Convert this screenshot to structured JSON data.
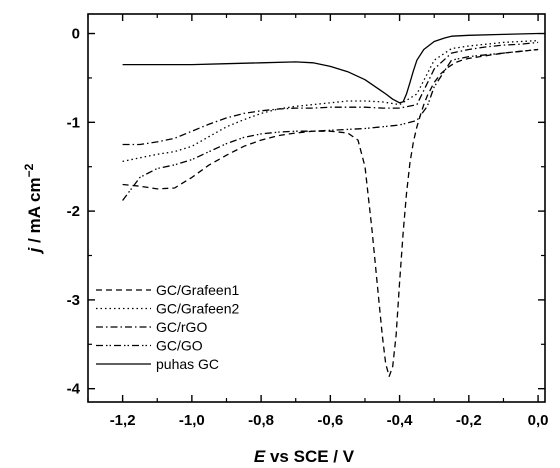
{
  "chart_data": {
    "type": "line",
    "xlabel": {
      "var": "E",
      "rest": " vs SCE / V"
    },
    "ylabel": {
      "var": "j",
      "rest": " / mA cm",
      "sup": "−2"
    },
    "xlim": [
      -1.3,
      0.02
    ],
    "ylim": [
      -4.15,
      0.22
    ],
    "xticks": [
      -1.2,
      -1.0,
      -0.8,
      -0.6,
      -0.4,
      -0.2,
      0.0
    ],
    "xtick_labels": [
      "-1,2",
      "-1,0",
      "-0,8",
      "-0,6",
      "-0,4",
      "-0,2",
      "0,0"
    ],
    "yticks": [
      0,
      -1,
      -2,
      -3,
      -4
    ],
    "ytick_labels": [
      "0",
      "-1",
      "-2",
      "-3",
      "-4"
    ],
    "grid": false,
    "legend_position": "bottom-left",
    "series": [
      {
        "name": "GC/Grafeen1",
        "dash": "6,4",
        "x": [
          -1.2,
          -1.15,
          -1.1,
          -1.05,
          -1.0,
          -0.95,
          -0.9,
          -0.85,
          -0.8,
          -0.75,
          -0.7,
          -0.65,
          -0.6,
          -0.55,
          -0.52,
          -0.5,
          -0.48,
          -0.46,
          -0.45,
          -0.44,
          -0.43,
          -0.42,
          -0.41,
          -0.4,
          -0.39,
          -0.38,
          -0.37,
          -0.36,
          -0.35,
          -0.34,
          -0.33,
          -0.32,
          -0.3,
          -0.28,
          -0.26,
          -0.24,
          -0.22,
          -0.2,
          -0.15,
          -0.1,
          -0.05,
          0.0
        ],
        "y": [
          -1.7,
          -1.72,
          -1.75,
          -1.74,
          -1.62,
          -1.48,
          -1.37,
          -1.27,
          -1.2,
          -1.15,
          -1.12,
          -1.1,
          -1.1,
          -1.12,
          -1.2,
          -1.5,
          -2.2,
          -3.0,
          -3.4,
          -3.72,
          -3.86,
          -3.75,
          -3.4,
          -2.8,
          -2.25,
          -1.8,
          -1.45,
          -1.22,
          -1.05,
          -0.92,
          -0.8,
          -0.7,
          -0.55,
          -0.45,
          -0.38,
          -0.33,
          -0.3,
          -0.28,
          -0.25,
          -0.22,
          -0.2,
          -0.18
        ]
      },
      {
        "name": "GC/Grafeen2",
        "dash": "1.5,3",
        "x": [
          -1.2,
          -1.15,
          -1.1,
          -1.05,
          -1.0,
          -0.95,
          -0.9,
          -0.85,
          -0.8,
          -0.75,
          -0.7,
          -0.65,
          -0.6,
          -0.55,
          -0.5,
          -0.45,
          -0.4,
          -0.35,
          -0.3,
          -0.25,
          -0.2,
          -0.15,
          -0.1,
          -0.05,
          0.0
        ],
        "y": [
          -1.44,
          -1.4,
          -1.36,
          -1.33,
          -1.27,
          -1.16,
          -1.05,
          -0.97,
          -0.9,
          -0.85,
          -0.82,
          -0.8,
          -0.78,
          -0.76,
          -0.76,
          -0.77,
          -0.8,
          -0.68,
          -0.3,
          -0.17,
          -0.14,
          -0.12,
          -0.1,
          -0.09,
          -0.08
        ]
      },
      {
        "name": "GC/rGO",
        "dash": "7,3,1.5,3",
        "x": [
          -1.2,
          -1.15,
          -1.1,
          -1.05,
          -1.0,
          -0.95,
          -0.9,
          -0.85,
          -0.8,
          -0.75,
          -0.7,
          -0.65,
          -0.6,
          -0.55,
          -0.5,
          -0.45,
          -0.4,
          -0.35,
          -0.3,
          -0.25,
          -0.2,
          -0.15,
          -0.1,
          -0.05,
          0.0
        ],
        "y": [
          -1.25,
          -1.25,
          -1.22,
          -1.18,
          -1.1,
          -1.02,
          -0.95,
          -0.9,
          -0.87,
          -0.85,
          -0.84,
          -0.84,
          -0.83,
          -0.83,
          -0.83,
          -0.84,
          -0.84,
          -0.8,
          -0.4,
          -0.22,
          -0.18,
          -0.15,
          -0.13,
          -0.12,
          -0.1
        ]
      },
      {
        "name": "GC/GO",
        "dash": "7,3,1.5,2,1.5,3",
        "x": [
          -1.2,
          -1.15,
          -1.1,
          -1.05,
          -1.0,
          -0.95,
          -0.9,
          -0.85,
          -0.8,
          -0.75,
          -0.7,
          -0.65,
          -0.6,
          -0.55,
          -0.5,
          -0.45,
          -0.4,
          -0.35,
          -0.32,
          -0.3,
          -0.25,
          -0.2,
          -0.15,
          -0.1,
          -0.05,
          0.0
        ],
        "y": [
          -1.88,
          -1.62,
          -1.52,
          -1.48,
          -1.42,
          -1.33,
          -1.24,
          -1.17,
          -1.13,
          -1.11,
          -1.1,
          -1.1,
          -1.09,
          -1.08,
          -1.07,
          -1.05,
          -1.03,
          -0.98,
          -0.82,
          -0.6,
          -0.3,
          -0.26,
          -0.24,
          -0.22,
          -0.2,
          -0.18
        ]
      },
      {
        "name": "puhas GC",
        "dash": "",
        "x": [
          -1.2,
          -1.1,
          -1.0,
          -0.9,
          -0.8,
          -0.7,
          -0.65,
          -0.6,
          -0.55,
          -0.5,
          -0.47,
          -0.44,
          -0.42,
          -0.4,
          -0.39,
          -0.38,
          -0.37,
          -0.36,
          -0.35,
          -0.33,
          -0.3,
          -0.27,
          -0.25,
          -0.2,
          -0.1,
          0.0
        ],
        "y": [
          -0.35,
          -0.35,
          -0.35,
          -0.34,
          -0.33,
          -0.32,
          -0.33,
          -0.37,
          -0.43,
          -0.52,
          -0.6,
          -0.68,
          -0.74,
          -0.78,
          -0.77,
          -0.68,
          -0.55,
          -0.42,
          -0.3,
          -0.18,
          -0.09,
          -0.05,
          -0.03,
          -0.02,
          -0.01,
          0.0
        ]
      }
    ]
  }
}
